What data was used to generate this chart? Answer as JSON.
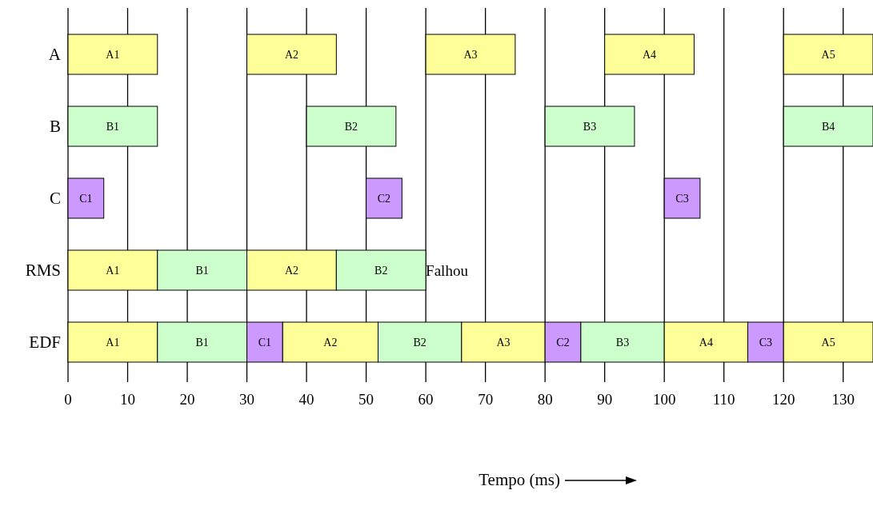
{
  "chart_data": {
    "type": "bar",
    "orientation": "horizontal",
    "xlabel": "Tempo (ms)",
    "categories": [
      "A",
      "B",
      "C",
      "RMS",
      "EDF"
    ],
    "xlim": [
      0,
      135
    ],
    "xticks": [
      0,
      10,
      20,
      30,
      40,
      50,
      60,
      70,
      80,
      90,
      100,
      110,
      120,
      130
    ],
    "grid": "x",
    "series": [
      {
        "values": [
          15,
          15,
          6,
          15,
          15
        ],
        "base": [
          0,
          0,
          0,
          0,
          0
        ],
        "value_labels": [
          "A1",
          "B1",
          "C1",
          "A1",
          "A1"
        ],
        "colors": [
          "#ffff99",
          "#ccffcc",
          "#cc99ff",
          "#ffff99",
          "#ffff99"
        ]
      },
      {
        "values": [
          15,
          15,
          6,
          15,
          15
        ],
        "base": [
          30,
          40,
          50,
          15,
          15
        ],
        "value_labels": [
          "A2",
          "B2",
          "C2",
          "B1",
          "B1"
        ],
        "colors": [
          "#ffff99",
          "#ccffcc",
          "#cc99ff",
          "#ccffcc",
          "#ccffcc"
        ]
      },
      {
        "values": [
          15,
          15,
          6,
          15,
          6
        ],
        "base": [
          60,
          80,
          100,
          30,
          30
        ],
        "value_labels": [
          "A3",
          "B3",
          "C3",
          "A2",
          "C1"
        ],
        "colors": [
          "#ffff99",
          "#ccffcc",
          "#cc99ff",
          "#ffff99",
          "#cc99ff"
        ]
      },
      {
        "values": [
          15,
          15,
          null,
          15,
          16
        ],
        "base": [
          90,
          120,
          null,
          45,
          36
        ],
        "value_labels": [
          "A4",
          "B4",
          null,
          "B2",
          "A2"
        ],
        "colors": [
          "#ffff99",
          "#ccffcc",
          null,
          "#ccffcc",
          "#ffff99"
        ]
      },
      {
        "values": [
          15,
          null,
          null,
          null,
          14
        ],
        "base": [
          120,
          null,
          null,
          null,
          52
        ],
        "value_labels": [
          "A5",
          null,
          null,
          null,
          "B2"
        ],
        "colors": [
          "#ffff99",
          null,
          null,
          null,
          "#ccffcc"
        ]
      },
      {
        "values": [
          null,
          null,
          null,
          null,
          14
        ],
        "base": [
          null,
          null,
          null,
          null,
          66
        ],
        "value_labels": [
          null,
          null,
          null,
          null,
          "A3"
        ],
        "colors": [
          null,
          null,
          null,
          null,
          "#ffff99"
        ]
      },
      {
        "values": [
          null,
          null,
          null,
          null,
          6
        ],
        "base": [
          null,
          null,
          null,
          null,
          80
        ],
        "value_labels": [
          null,
          null,
          null,
          null,
          "C2"
        ],
        "colors": [
          null,
          null,
          null,
          null,
          "#cc99ff"
        ]
      },
      {
        "values": [
          null,
          null,
          null,
          null,
          14
        ],
        "base": [
          null,
          null,
          null,
          null,
          86
        ],
        "value_labels": [
          null,
          null,
          null,
          null,
          "B3"
        ],
        "colors": [
          null,
          null,
          null,
          null,
          "#ccffcc"
        ]
      },
      {
        "values": [
          null,
          null,
          null,
          null,
          14
        ],
        "base": [
          null,
          null,
          null,
          null,
          100
        ],
        "value_labels": [
          null,
          null,
          null,
          null,
          "A4"
        ],
        "colors": [
          null,
          null,
          null,
          null,
          "#ffff99"
        ]
      },
      {
        "values": [
          null,
          null,
          null,
          null,
          6
        ],
        "base": [
          null,
          null,
          null,
          null,
          114
        ],
        "value_labels": [
          null,
          null,
          null,
          null,
          "C3"
        ],
        "colors": [
          null,
          null,
          null,
          null,
          "#cc99ff"
        ]
      },
      {
        "values": [
          null,
          null,
          null,
          null,
          15
        ],
        "base": [
          null,
          null,
          null,
          null,
          120
        ],
        "value_labels": [
          null,
          null,
          null,
          null,
          "A5"
        ],
        "colors": [
          null,
          null,
          null,
          null,
          "#ffff99"
        ]
      }
    ],
    "annotations": [
      {
        "text": "Falhou",
        "x": 60,
        "y": "RMS"
      }
    ]
  }
}
